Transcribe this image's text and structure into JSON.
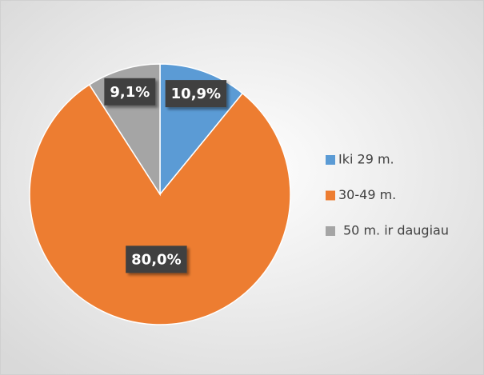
{
  "chart_data": {
    "type": "pie",
    "categories": [
      "Iki 29 m.",
      "30-49 m.",
      "50 m. ir daugiau"
    ],
    "values": [
      10.9,
      80.0,
      9.1
    ],
    "value_labels": [
      "10,9%",
      "80,0%",
      "9,1%"
    ],
    "colors": [
      "#5b9bd5",
      "#ed7d31",
      "#a5a5a5"
    ],
    "legend": "right"
  }
}
